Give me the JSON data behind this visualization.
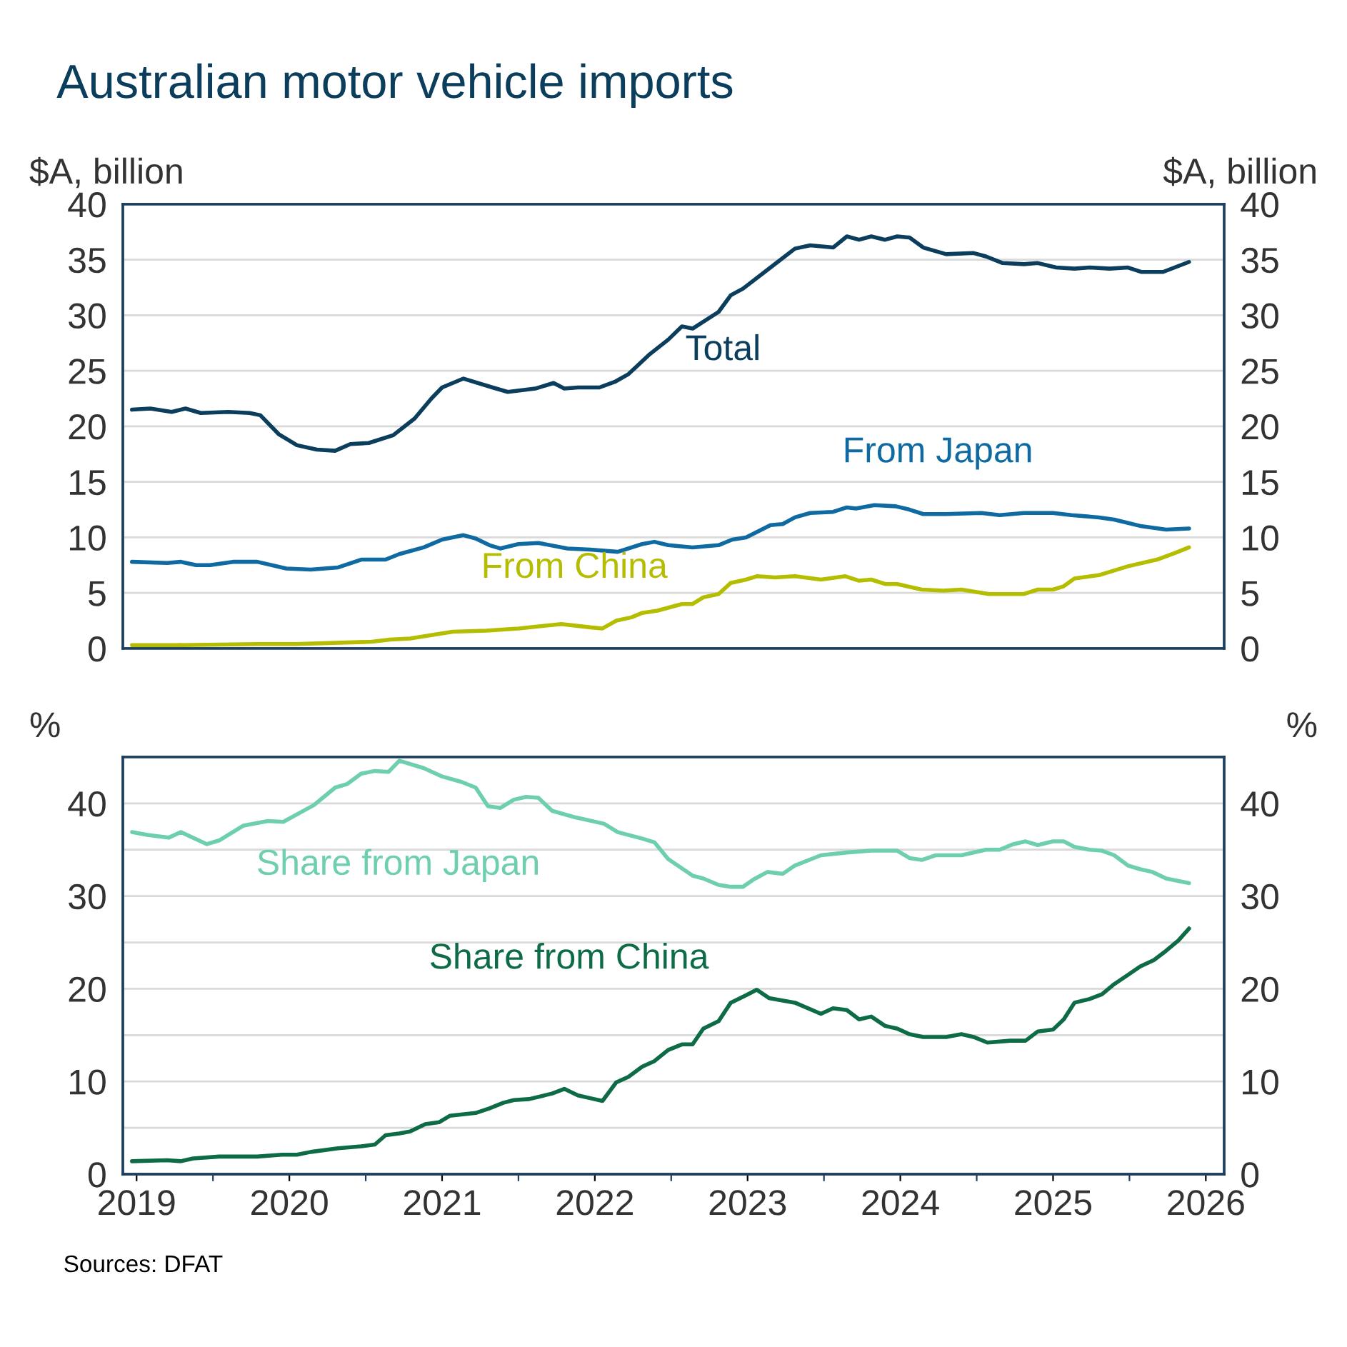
{
  "chart_data": [
    {
      "type": "line",
      "title": "Australian motor vehicle imports",
      "ylabel": "$A, billion",
      "y2label": "$A, billion",
      "xlim": [
        2019.41,
        2026.62
      ],
      "ylim": [
        0,
        40
      ],
      "yticks": [
        0,
        5,
        10,
        15,
        20,
        25,
        30,
        35,
        40
      ],
      "y2lim": [
        0,
        40
      ],
      "y2ticks": [
        0,
        5,
        10,
        15,
        20,
        25,
        30,
        35,
        40
      ],
      "grid": "y",
      "tick_labels": "y",
      "series": [
        {
          "name": "Total",
          "color": "#0b3d5c",
          "x": [
            2019.47,
            2019.59,
            2019.73,
            2019.82,
            2019.92,
            2020.1,
            2020.24,
            2020.31,
            2020.43,
            2020.55,
            2020.68,
            2020.8,
            2020.9,
            2021.02,
            2021.18,
            2021.32,
            2021.43,
            2021.5,
            2021.64,
            2021.83,
            2021.93,
            2022.11,
            2022.23,
            2022.3,
            2022.39,
            2022.53,
            2022.63,
            2022.72,
            2022.86,
            2022.98,
            2023.07,
            2023.14,
            2023.31,
            2023.39,
            2023.47,
            2023.65,
            2023.81,
            2023.91,
            2024.06,
            2024.15,
            2024.23,
            2024.31,
            2024.4,
            2024.48,
            2024.56,
            2024.65,
            2024.8,
            2024.98,
            2025.06,
            2025.17,
            2025.31,
            2025.4,
            2025.52,
            2025.64,
            2025.74,
            2025.87,
            2025.99,
            2026.08,
            2026.22,
            2026.39
          ],
          "values": [
            21.5,
            21.6,
            21.3,
            21.6,
            21.2,
            21.3,
            21.2,
            21.0,
            19.3,
            18.3,
            17.9,
            17.8,
            18.4,
            18.5,
            19.2,
            20.7,
            22.5,
            23.5,
            24.3,
            23.5,
            23.1,
            23.4,
            23.9,
            23.4,
            23.5,
            23.5,
            24.0,
            24.7,
            26.5,
            27.8,
            29.0,
            28.8,
            30.3,
            31.8,
            32.4,
            34.3,
            36.0,
            36.3,
            36.1,
            37.1,
            36.8,
            37.1,
            36.8,
            37.1,
            37.0,
            36.1,
            35.5,
            35.6,
            35.3,
            34.7,
            34.6,
            34.7,
            34.3,
            34.2,
            34.3,
            34.2,
            34.3,
            33.9,
            33.9,
            34.8
          ]
        },
        {
          "name": "From Japan",
          "color": "#0e6aa1",
          "x": [
            2019.47,
            2019.7,
            2019.79,
            2019.89,
            2019.98,
            2020.13,
            2020.29,
            2020.48,
            2020.64,
            2020.82,
            2020.97,
            2021.13,
            2021.22,
            2021.38,
            2021.5,
            2021.64,
            2021.72,
            2021.81,
            2021.88,
            2022.0,
            2022.13,
            2022.32,
            2022.47,
            2022.65,
            2022.81,
            2022.89,
            2022.98,
            2023.14,
            2023.31,
            2023.4,
            2023.49,
            2023.65,
            2023.73,
            2023.81,
            2023.91,
            2024.06,
            2024.15,
            2024.21,
            2024.33,
            2024.47,
            2024.56,
            2024.65,
            2024.8,
            2025.03,
            2025.15,
            2025.31,
            2025.5,
            2025.62,
            2025.8,
            2025.9,
            2026.08,
            2026.24,
            2026.39
          ],
          "values": [
            7.8,
            7.7,
            7.8,
            7.5,
            7.5,
            7.8,
            7.8,
            7.2,
            7.1,
            7.3,
            8.0,
            8.0,
            8.5,
            9.1,
            9.8,
            10.2,
            9.9,
            9.3,
            9.0,
            9.4,
            9.5,
            9.0,
            8.9,
            8.7,
            9.4,
            9.6,
            9.3,
            9.1,
            9.3,
            9.8,
            10.0,
            11.1,
            11.2,
            11.8,
            12.2,
            12.3,
            12.7,
            12.6,
            12.9,
            12.8,
            12.5,
            12.1,
            12.1,
            12.2,
            12.0,
            12.2,
            12.2,
            12.0,
            11.8,
            11.6,
            11.0,
            10.7,
            10.8
          ]
        },
        {
          "name": "From China",
          "color": "#b5bd00",
          "x": [
            2019.47,
            2019.76,
            2020.29,
            2020.54,
            2021.04,
            2021.16,
            2021.29,
            2021.57,
            2021.79,
            2022.0,
            2022.28,
            2022.47,
            2022.55,
            2022.64,
            2022.74,
            2022.81,
            2022.91,
            2023.07,
            2023.14,
            2023.21,
            2023.31,
            2023.39,
            2023.49,
            2023.56,
            2023.68,
            2023.81,
            2023.98,
            2024.14,
            2024.23,
            2024.31,
            2024.4,
            2024.48,
            2024.64,
            2024.78,
            2024.9,
            2025.08,
            2025.31,
            2025.4,
            2025.5,
            2025.57,
            2025.64,
            2025.8,
            2025.99,
            2026.18,
            2026.3,
            2026.39
          ],
          "values": [
            0.3,
            0.3,
            0.4,
            0.4,
            0.6,
            0.8,
            0.9,
            1.5,
            1.6,
            1.8,
            2.2,
            1.9,
            1.8,
            2.5,
            2.8,
            3.2,
            3.4,
            4.0,
            4.0,
            4.6,
            4.9,
            5.9,
            6.2,
            6.5,
            6.4,
            6.5,
            6.2,
            6.5,
            6.1,
            6.2,
            5.8,
            5.8,
            5.3,
            5.2,
            5.3,
            4.9,
            4.9,
            5.3,
            5.3,
            5.6,
            6.3,
            6.6,
            7.4,
            8.0,
            8.6,
            9.1
          ]
        }
      ]
    },
    {
      "type": "line",
      "ylabel": "%",
      "y2label": "%",
      "xlim": [
        2019.41,
        2026.62
      ],
      "xticks": [
        {
          "value": 2019.5,
          "label": "2019"
        },
        {
          "value": 2020,
          "label": null
        },
        {
          "value": 2020.5,
          "label": "2020"
        },
        {
          "value": 2021,
          "label": null
        },
        {
          "value": 2021.5,
          "label": "2021"
        },
        {
          "value": 2022,
          "label": null
        },
        {
          "value": 2022.5,
          "label": "2022"
        },
        {
          "value": 2023,
          "label": null
        },
        {
          "value": 2023.5,
          "label": "2023"
        },
        {
          "value": 2024,
          "label": null
        },
        {
          "value": 2024.5,
          "label": "2024"
        },
        {
          "value": 2025,
          "label": null
        },
        {
          "value": 2025.5,
          "label": "2025"
        },
        {
          "value": 2026,
          "label": null
        },
        {
          "value": 2026.5,
          "label": "2026"
        }
      ],
      "ylim": [
        0,
        45
      ],
      "yticks": [
        0,
        {
          "value": 5,
          "label": null
        },
        10,
        {
          "value": 15,
          "label": null
        },
        20,
        {
          "value": 25,
          "label": null
        },
        30,
        {
          "value": 35,
          "label": null
        },
        40
      ],
      "y2lim": [
        0,
        45
      ],
      "y2ticks": [
        0,
        10,
        20,
        30,
        40
      ],
      "grid": "y",
      "annotations": [
        "Sources: DFAT"
      ],
      "series": [
        {
          "name": "Share from Japan",
          "color": "#6dcfae",
          "x": [
            2019.47,
            2019.57,
            2019.71,
            2019.79,
            2019.96,
            2020.04,
            2020.2,
            2020.36,
            2020.46,
            2020.57,
            2020.66,
            2020.8,
            2020.88,
            2020.97,
            2021.06,
            2021.15,
            2021.22,
            2021.38,
            2021.5,
            2021.63,
            2021.72,
            2021.8,
            2021.88,
            2021.97,
            2022.05,
            2022.13,
            2022.22,
            2022.37,
            2022.56,
            2022.65,
            2022.81,
            2022.89,
            2022.98,
            2023.14,
            2023.21,
            2023.31,
            2023.39,
            2023.47,
            2023.54,
            2023.63,
            2023.73,
            2023.81,
            2023.98,
            2024.15,
            2024.31,
            2024.48,
            2024.56,
            2024.64,
            2024.73,
            2024.9,
            2025.06,
            2025.15,
            2025.24,
            2025.32,
            2025.4,
            2025.5,
            2025.57,
            2025.64,
            2025.74,
            2025.82,
            2025.9,
            2025.99,
            2026.07,
            2026.15,
            2026.24,
            2026.39
          ],
          "values": [
            36.9,
            36.6,
            36.3,
            36.9,
            35.6,
            36.0,
            37.6,
            38.1,
            38.0,
            39.0,
            39.8,
            41.7,
            42.1,
            43.2,
            43.5,
            43.4,
            44.6,
            43.8,
            42.9,
            42.3,
            41.7,
            39.7,
            39.5,
            40.4,
            40.7,
            40.6,
            39.2,
            38.5,
            37.8,
            36.9,
            36.2,
            35.8,
            34.0,
            32.2,
            31.9,
            31.2,
            31.0,
            31.0,
            31.8,
            32.6,
            32.4,
            33.3,
            34.4,
            34.7,
            34.9,
            34.9,
            34.1,
            33.9,
            34.4,
            34.4,
            35.0,
            35.0,
            35.6,
            35.9,
            35.5,
            35.9,
            35.9,
            35.3,
            35.0,
            34.9,
            34.4,
            33.3,
            32.9,
            32.6,
            31.9,
            31.4
          ]
        },
        {
          "name": "Share from China",
          "color": "#0d6b45",
          "x": [
            2019.47,
            2019.7,
            2019.79,
            2019.87,
            2020.04,
            2020.29,
            2020.45,
            2020.55,
            2020.64,
            2020.82,
            2020.97,
            2021.06,
            2021.13,
            2021.22,
            2021.29,
            2021.39,
            2021.48,
            2021.55,
            2021.72,
            2021.81,
            2021.9,
            2021.97,
            2022.07,
            2022.22,
            2022.3,
            2022.39,
            2022.47,
            2022.55,
            2022.64,
            2022.72,
            2022.81,
            2022.89,
            2022.98,
            2023.07,
            2023.14,
            2023.21,
            2023.31,
            2023.39,
            2023.49,
            2023.56,
            2023.64,
            2023.81,
            2023.98,
            2024.06,
            2024.15,
            2024.23,
            2024.31,
            2024.4,
            2024.48,
            2024.56,
            2024.65,
            2024.8,
            2024.9,
            2024.98,
            2025.07,
            2025.22,
            2025.32,
            2025.4,
            2025.5,
            2025.57,
            2025.64,
            2025.74,
            2025.82,
            2025.9,
            2025.99,
            2026.07,
            2026.16,
            2026.24,
            2026.32,
            2026.39
          ],
          "values": [
            1.4,
            1.5,
            1.4,
            1.7,
            1.9,
            1.9,
            2.1,
            2.1,
            2.4,
            2.8,
            3.0,
            3.2,
            4.2,
            4.4,
            4.6,
            5.4,
            5.6,
            6.3,
            6.6,
            7.1,
            7.7,
            8.0,
            8.1,
            8.7,
            9.2,
            8.5,
            8.2,
            7.9,
            9.9,
            10.5,
            11.6,
            12.2,
            13.4,
            14.0,
            14.0,
            15.7,
            16.5,
            18.5,
            19.3,
            19.9,
            19.0,
            18.5,
            17.3,
            17.9,
            17.7,
            16.7,
            17.0,
            16.0,
            15.7,
            15.1,
            14.8,
            14.8,
            15.1,
            14.8,
            14.2,
            14.4,
            14.4,
            15.4,
            15.6,
            16.7,
            18.5,
            18.9,
            19.4,
            20.5,
            21.5,
            22.4,
            23.1,
            24.1,
            25.2,
            26.5
          ]
        }
      ]
    }
  ]
}
